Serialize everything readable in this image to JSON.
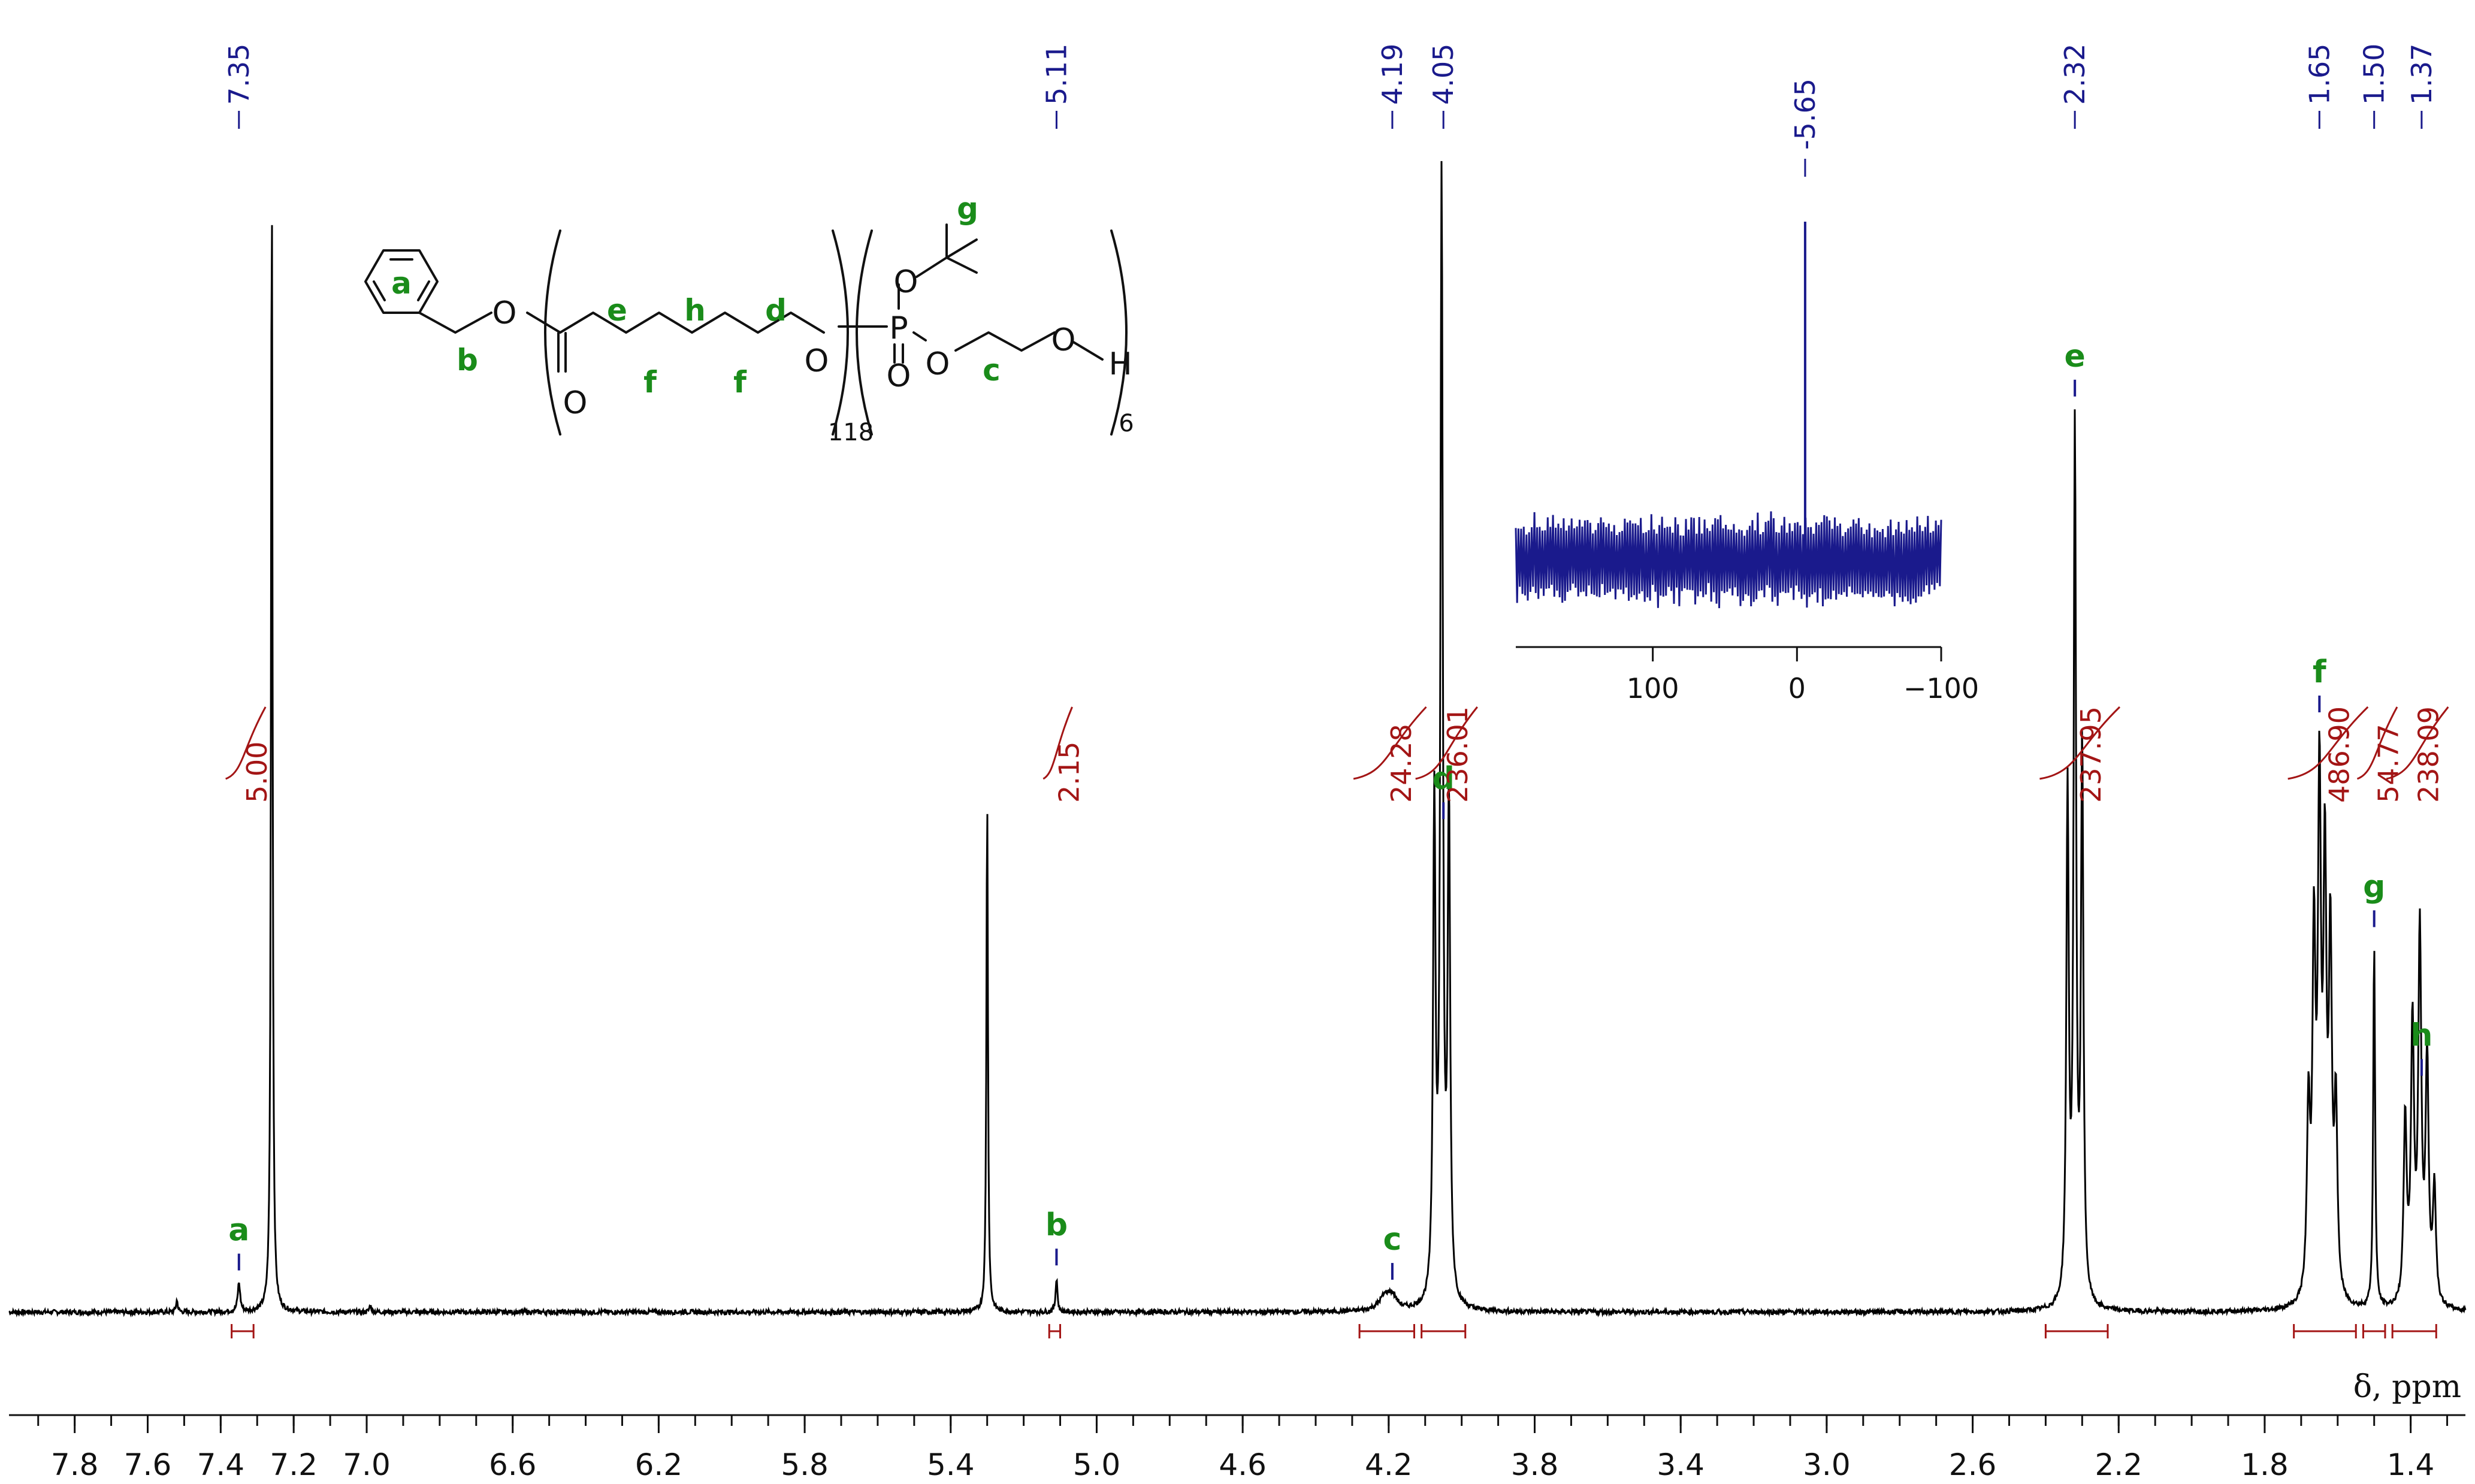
{
  "chart_data": {
    "type": "line",
    "title": "",
    "xlabel": "δ, ppm",
    "ylabel": "",
    "xlim": [
      7.98,
      1.25
    ],
    "x_reversed": true,
    "x_ticks": [
      "7.8",
      "7.6",
      "7.4",
      "7.2",
      "7.0",
      "6.6",
      "6.2",
      "5.8",
      "5.4",
      "5.0",
      "4.6",
      "4.2",
      "3.8",
      "3.4",
      "3.0",
      "2.6",
      "2.2",
      "1.8",
      "1.4"
    ],
    "x_tick_values": [
      7.8,
      7.6,
      7.4,
      7.2,
      7.0,
      6.6,
      6.2,
      5.8,
      5.4,
      5.0,
      4.6,
      4.2,
      3.8,
      3.4,
      3.0,
      2.6,
      2.2,
      1.8,
      1.4
    ],
    "series": [
      {
        "peaks": [
          {
            "ppm": 7.52,
            "height": 0.01,
            "width": 0.003
          },
          {
            "ppm": 7.35,
            "height": 0.025,
            "width": 0.004
          },
          {
            "ppm": 7.26,
            "height": 1.0,
            "width": 0.0025
          },
          {
            "ppm": 6.99,
            "height": 0.006,
            "width": 0.003
          },
          {
            "ppm": 5.3,
            "height": 0.45,
            "width": 0.0025
          },
          {
            "ppm": 5.11,
            "height": 0.03,
            "width": 0.003
          },
          {
            "ppm": 4.21,
            "height": 0.012,
            "width": 0.02
          },
          {
            "ppm": 4.19,
            "height": 0.01,
            "width": 0.015
          },
          {
            "ppm": 4.075,
            "height": 0.43,
            "width": 0.004
          },
          {
            "ppm": 4.055,
            "height": 0.97,
            "width": 0.004
          },
          {
            "ppm": 4.035,
            "height": 0.43,
            "width": 0.004
          },
          {
            "ppm": 2.34,
            "height": 0.44,
            "width": 0.004
          },
          {
            "ppm": 2.32,
            "height": 0.75,
            "width": 0.004
          },
          {
            "ppm": 2.3,
            "height": 0.48,
            "width": 0.004
          },
          {
            "ppm": 1.68,
            "height": 0.16,
            "width": 0.005
          },
          {
            "ppm": 1.665,
            "height": 0.3,
            "width": 0.005
          },
          {
            "ppm": 1.65,
            "height": 0.43,
            "width": 0.005
          },
          {
            "ppm": 1.635,
            "height": 0.36,
            "width": 0.005
          },
          {
            "ppm": 1.62,
            "height": 0.3,
            "width": 0.005
          },
          {
            "ppm": 1.605,
            "height": 0.16,
            "width": 0.005
          },
          {
            "ppm": 1.5,
            "height": 0.32,
            "width": 0.003
          },
          {
            "ppm": 1.415,
            "height": 0.16,
            "width": 0.005
          },
          {
            "ppm": 1.395,
            "height": 0.24,
            "width": 0.005
          },
          {
            "ppm": 1.375,
            "height": 0.32,
            "width": 0.005
          },
          {
            "ppm": 1.355,
            "height": 0.21,
            "width": 0.005
          },
          {
            "ppm": 1.335,
            "height": 0.1,
            "width": 0.005
          }
        ]
      }
    ],
    "peak_labels": [
      "7.35",
      "5.11",
      "4.19",
      "4.05",
      "2.32",
      "1.65",
      "1.50",
      "1.37"
    ],
    "peak_label_positions": [
      7.35,
      5.11,
      4.19,
      4.05,
      2.32,
      1.65,
      1.5,
      1.37
    ],
    "assignments": [
      {
        "label": "a",
        "ppm": 7.35
      },
      {
        "label": "b",
        "ppm": 5.11
      },
      {
        "label": "c",
        "ppm": 4.19
      },
      {
        "label": "d",
        "ppm": 4.05
      },
      {
        "label": "e",
        "ppm": 2.32
      },
      {
        "label": "f",
        "ppm": 1.65
      },
      {
        "label": "g",
        "ppm": 1.5
      },
      {
        "label": "h",
        "ppm": 1.37
      }
    ],
    "integrals": [
      {
        "value": "5.00",
        "from": 7.37,
        "to": 7.31
      },
      {
        "value": "2.15",
        "from": 5.13,
        "to": 5.1
      },
      {
        "value": "24.28",
        "from": 4.28,
        "to": 4.13
      },
      {
        "value": "236.01",
        "from": 4.11,
        "to": 3.99
      },
      {
        "value": "237.95",
        "from": 2.4,
        "to": 2.23
      },
      {
        "value": "486.90",
        "from": 1.72,
        "to": 1.55
      },
      {
        "value": "54.77",
        "from": 1.53,
        "to": 1.47
      },
      {
        "value": "238.09",
        "from": 1.45,
        "to": 1.33
      }
    ],
    "inset": {
      "type": "line",
      "nucleus_peak_label": "-5.65",
      "peak_ppm": -5.65,
      "xlim": [
        195,
        -100
      ],
      "x_ticks": [
        "100",
        "0",
        "−100"
      ],
      "x_tick_values": [
        100,
        0,
        -100
      ]
    },
    "structure": {
      "atom_labels": [
        "O",
        "O",
        "O",
        "O",
        "P",
        "O",
        "O",
        "O",
        "O",
        "H"
      ],
      "repeat_subscripts": [
        "118",
        "6"
      ],
      "position_labels": [
        "a",
        "b",
        "c",
        "d",
        "e",
        "f",
        "f",
        "g",
        "h"
      ]
    }
  },
  "colors": {
    "spectrum": "#000000",
    "peak_label": "#1a1a8c",
    "assignment": "#1a8c1a",
    "integral": "#a31515",
    "inset_trace": "#1a1a8c"
  }
}
